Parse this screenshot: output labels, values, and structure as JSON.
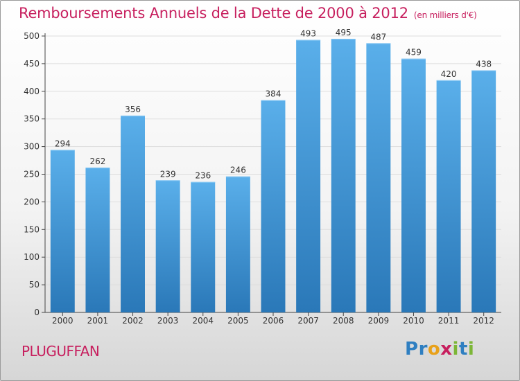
{
  "header": {
    "title": "Remboursements Annuels de la Dette de 2000 à 2012",
    "unit": "(en milliers d'€)"
  },
  "footer": {
    "commune": "PLUGUFFAN",
    "logo_letters": [
      {
        "ch": "P",
        "color": "#2f7fc1"
      },
      {
        "ch": "r",
        "color": "#2f7fc1"
      },
      {
        "ch": "o",
        "color": "#e8a11a"
      },
      {
        "ch": "x",
        "color": "#c71f5e"
      },
      {
        "ch": "i",
        "color": "#7cb637"
      },
      {
        "ch": "t",
        "color": "#2f7fc1"
      },
      {
        "ch": "i",
        "color": "#7cb637"
      }
    ]
  },
  "chart_data": {
    "type": "bar",
    "title": "Remboursements Annuels de la Dette de 2000 à 2012",
    "xlabel": "",
    "ylabel": "",
    "categories": [
      "2000",
      "2001",
      "2002",
      "2003",
      "2004",
      "2005",
      "2006",
      "2007",
      "2008",
      "2009",
      "2010",
      "2011",
      "2012"
    ],
    "values": [
      294,
      262,
      356,
      239,
      236,
      246,
      384,
      493,
      495,
      487,
      459,
      420,
      438
    ],
    "ylim": [
      0,
      500
    ],
    "yticks": [
      0,
      50,
      100,
      150,
      200,
      250,
      300,
      350,
      400,
      450,
      500
    ],
    "grid": true,
    "bar_color_top": "#5aafea",
    "bar_color_bottom": "#2a78b8",
    "grid_color": "#dddddd"
  }
}
